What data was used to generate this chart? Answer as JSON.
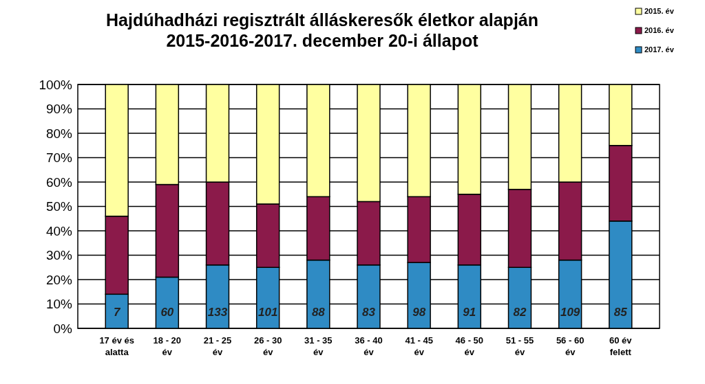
{
  "chart_data": {
    "type": "bar",
    "title": "Hajdúhadházi regisztrált álláskeresők életkor alapján\n2015-2016-2017. december 20-i állapot",
    "categories": [
      "17 év és\nalatta",
      "18 - 20\név",
      "21 - 25\név",
      "26 - 30\név",
      "31 - 35\név",
      "36 - 40\név",
      "41 - 45\név",
      "46 - 50\név",
      "51 - 55\név",
      "56 - 60\név",
      "60 év\nfelett"
    ],
    "series": [
      {
        "name": "2017. év",
        "color": "#2f8bc4",
        "values": [
          14,
          21,
          26,
          25,
          28,
          26,
          27,
          26,
          25,
          28,
          44
        ]
      },
      {
        "name": "2016. év",
        "color": "#8b1a4a",
        "values": [
          32,
          38,
          34,
          26,
          26,
          26,
          27,
          29,
          32,
          32,
          31
        ]
      },
      {
        "name": "2015. év",
        "color": "#ffffa0",
        "values": [
          54,
          41,
          40,
          49,
          46,
          48,
          46,
          45,
          43,
          40,
          25
        ]
      }
    ],
    "annotations": [
      "7",
      "60",
      "133",
      "101",
      "88",
      "83",
      "98",
      "91",
      "82",
      "109",
      "85"
    ],
    "stacked": true,
    "ylim": [
      0,
      100
    ],
    "yticks": [
      {
        "value": 0,
        "label": "0%"
      },
      {
        "value": 10,
        "label": "10%"
      },
      {
        "value": 20,
        "label": "20%"
      },
      {
        "value": 30,
        "label": "30%"
      },
      {
        "value": 40,
        "label": "40%"
      },
      {
        "value": 50,
        "label": "50%"
      },
      {
        "value": 60,
        "label": "60%"
      },
      {
        "value": 70,
        "label": "70%"
      },
      {
        "value": 80,
        "label": "80%"
      },
      {
        "value": 90,
        "label": "90%"
      },
      {
        "value": 100,
        "label": "100%"
      }
    ],
    "grid": "y",
    "legend": "top right"
  }
}
